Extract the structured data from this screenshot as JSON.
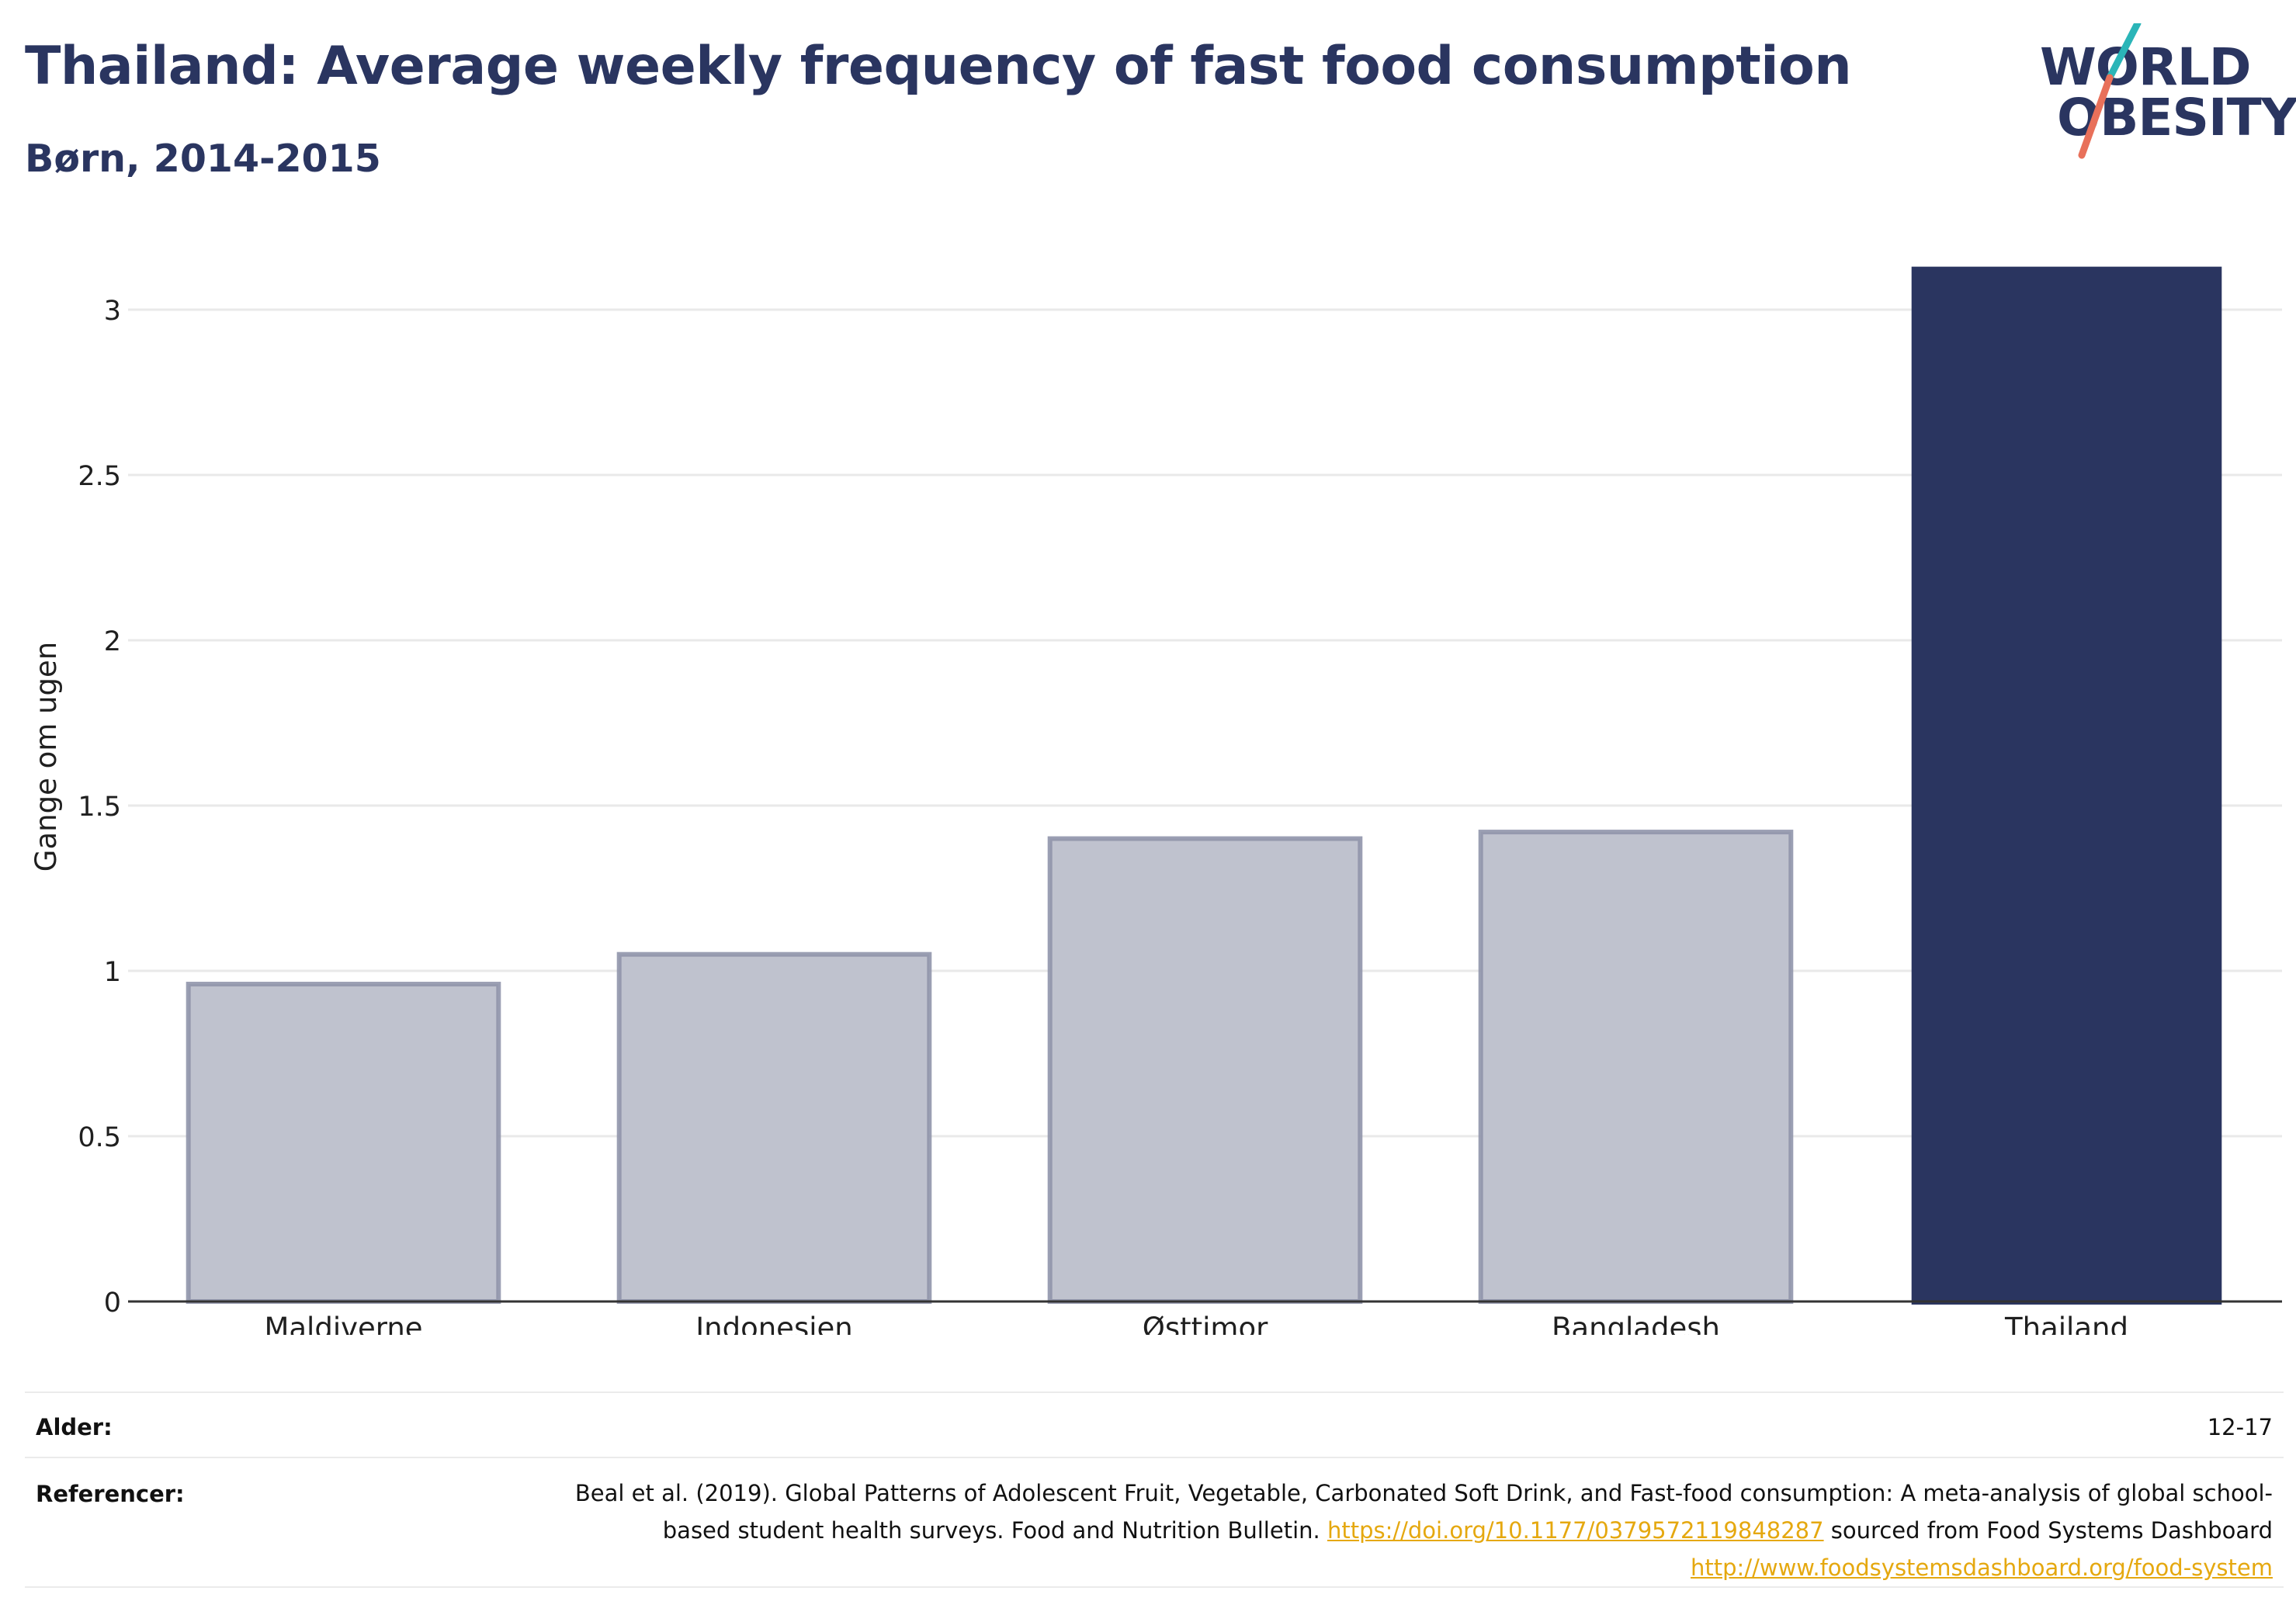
{
  "header": {
    "title": "Thailand: Average weekly frequency of fast food consumption",
    "subtitle": "Børn, 2014-2015"
  },
  "logo": {
    "line1": "WORLD",
    "line2": "OBESITY",
    "colors": {
      "text": "#2a3560",
      "teal": "#2bb5b8",
      "coral": "#e8705a"
    }
  },
  "chart_data": {
    "type": "bar",
    "categories": [
      "Maldiverne",
      "Indonesien",
      "Østtimor",
      "Bangladesh",
      "Thailand"
    ],
    "values": [
      0.96,
      1.05,
      1.4,
      1.42,
      3.13
    ],
    "highlight": "Thailand",
    "ylabel": "Gange om ugen",
    "xlabel": "",
    "ylim": [
      0,
      3.2
    ],
    "yticks": [
      0,
      0.5,
      1,
      1.5,
      2,
      2.5,
      3
    ],
    "ytick_labels": [
      "0",
      "0.5",
      "1",
      "1.5",
      "2",
      "2.5",
      "3"
    ],
    "grid": true,
    "colors": {
      "highlight": "#2a3560",
      "other_fill": "#bfc2ce",
      "other_stroke": "#9095ab"
    }
  },
  "footer": {
    "age_label": "Alder:",
    "age_value": "12-17",
    "ref_label": "Referencer:",
    "ref_text1": "Beal et al. (2019). Global Patterns of Adolescent Fruit, Vegetable, Carbonated Soft Drink, and Fast-food consumption: A meta-analysis of global school-based student health surveys. Food and Nutrition Bulletin. ",
    "ref_link1": "https://doi.org/10.1177/0379572119848287",
    "ref_text2": " sourced from Food Systems Dashboard ",
    "ref_link2": "http://www.foodsystemsdashboard.org/food-system"
  }
}
